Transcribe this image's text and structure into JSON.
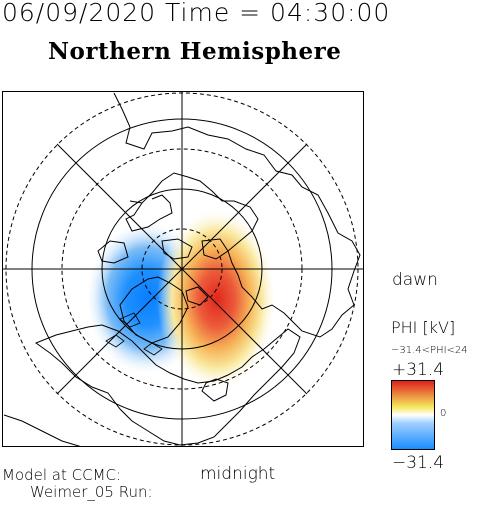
{
  "header": {
    "date_time": "06/09/2020 Time = 04:30:00",
    "hemisphere": "Northern Hemisphere"
  },
  "labels": {
    "dawn": "dawn",
    "midnight": "midnight",
    "model_line1": "Model at CCMC:",
    "model_line2": "Weimer_05 Run:"
  },
  "colorbar": {
    "title": "PHI [kV]",
    "range_text": "−31.4<PHI<24",
    "max_label": "+31.4",
    "min_label": "−31.4",
    "zero_label": "0",
    "min_value": -31.4,
    "max_value": 31.4,
    "colors": {
      "negative": "#1a8cff",
      "zero": "#ffffff",
      "positive": "#e01f1f",
      "mid_positive": "#f5e85c"
    }
  },
  "map": {
    "projection": "polar stereographic, north pole centered",
    "noon_direction": "top",
    "dawn_direction": "right",
    "potential_cells": [
      {
        "sign": "negative",
        "peak_kV": -31.4,
        "sector": "dusk / pre-midnight"
      },
      {
        "sign": "positive",
        "peak_kV": 24,
        "sector": "dawn / post-midnight"
      }
    ]
  }
}
